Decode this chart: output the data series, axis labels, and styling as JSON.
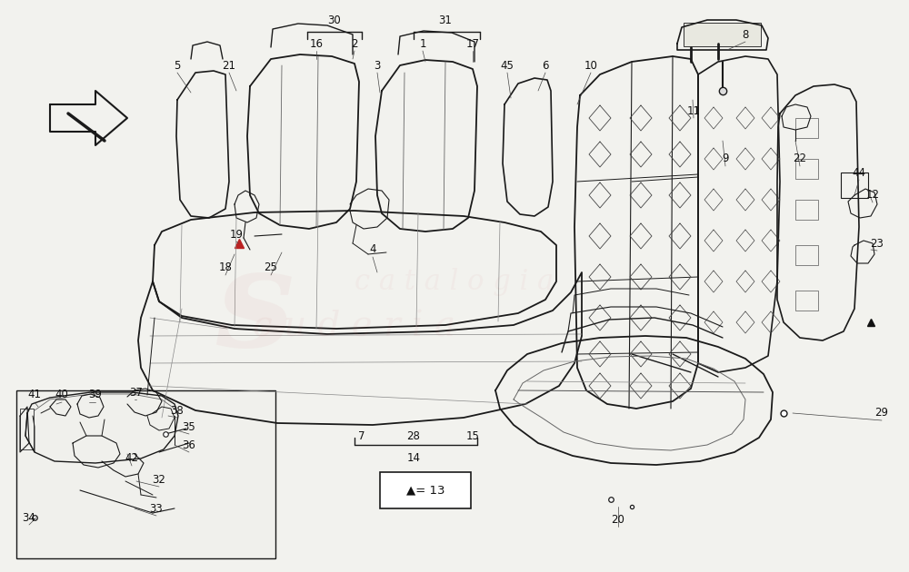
{
  "bg_color": "#f2f2ee",
  "line_color": "#1a1a1a",
  "lw_main": 1.2,
  "lw_thin": 0.7,
  "lw_detail": 0.5,
  "figsize": [
    10.0,
    6.3
  ],
  "dpi": 100,
  "watermark_alpha": 0.09
}
